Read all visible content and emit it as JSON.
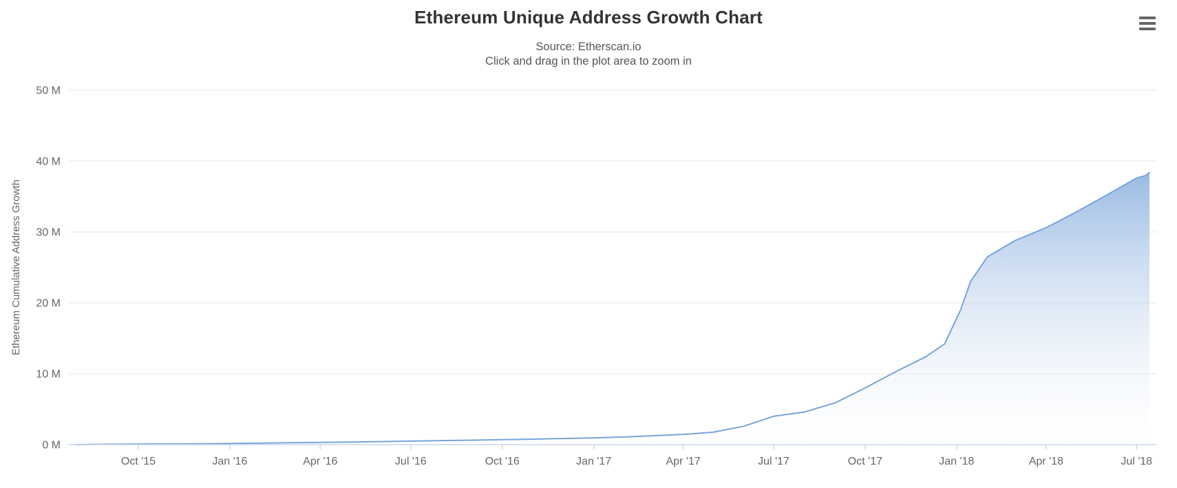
{
  "chart": {
    "title": "Ethereum Unique Address Growth Chart",
    "subtitle_source": "Source: Etherscan.io",
    "subtitle_hint": "Click and drag in the plot area to zoom in",
    "menu_icon": "hamburger-menu-icon",
    "colors": {
      "line": "#76a4da",
      "fill_top": "#5b90d1",
      "fill_bottom": "#ffffff",
      "grid": "#e6e6e6",
      "axis": "#ccd6eb",
      "title_text": "#333333",
      "subtitle_text": "#555555",
      "label_text": "#666666"
    }
  },
  "chart_data": {
    "type": "area",
    "title": "Ethereum Unique Address Growth Chart",
    "subtitle": [
      "Source: Etherscan.io",
      "Click and drag in the plot area to zoom in"
    ],
    "xlabel": "",
    "ylabel": "Ethereum Cumulative Address Growth",
    "y_unit": "millions of addresses",
    "ylim": [
      0,
      50
    ],
    "x_range": [
      "2015-07-30",
      "2018-07-14"
    ],
    "grid": "horizontal",
    "legend": "none",
    "y_ticks": [
      {
        "value": 0,
        "label": "0 M"
      },
      {
        "value": 10,
        "label": "10 M"
      },
      {
        "value": 20,
        "label": "20 M"
      },
      {
        "value": 30,
        "label": "30 M"
      },
      {
        "value": 40,
        "label": "40 M"
      },
      {
        "value": 50,
        "label": "50 M"
      }
    ],
    "x_ticks": [
      {
        "date": "2015-10-01",
        "label": "Oct '15"
      },
      {
        "date": "2016-01-01",
        "label": "Jan '16"
      },
      {
        "date": "2016-04-01",
        "label": "Apr '16"
      },
      {
        "date": "2016-07-01",
        "label": "Jul '16"
      },
      {
        "date": "2016-10-01",
        "label": "Oct '16"
      },
      {
        "date": "2017-01-01",
        "label": "Jan '17"
      },
      {
        "date": "2017-04-01",
        "label": "Apr '17"
      },
      {
        "date": "2017-07-01",
        "label": "Jul '17"
      },
      {
        "date": "2017-10-01",
        "label": "Oct '17"
      },
      {
        "date": "2018-01-01",
        "label": "Jan '18"
      },
      {
        "date": "2018-04-01",
        "label": "Apr '18"
      },
      {
        "date": "2018-07-01",
        "label": "Jul '18"
      }
    ],
    "series": [
      {
        "name": "Ethereum Cumulative Address Growth",
        "unit": "M",
        "points": [
          [
            "2015-07-30",
            0.0
          ],
          [
            "2015-08-15",
            0.03
          ],
          [
            "2015-09-01",
            0.06
          ],
          [
            "2015-10-01",
            0.09
          ],
          [
            "2015-11-01",
            0.11
          ],
          [
            "2015-12-01",
            0.13
          ],
          [
            "2016-01-01",
            0.16
          ],
          [
            "2016-02-01",
            0.2
          ],
          [
            "2016-03-01",
            0.26
          ],
          [
            "2016-04-01",
            0.31
          ],
          [
            "2016-05-01",
            0.37
          ],
          [
            "2016-06-01",
            0.43
          ],
          [
            "2016-07-01",
            0.5
          ],
          [
            "2016-08-01",
            0.57
          ],
          [
            "2016-09-01",
            0.63
          ],
          [
            "2016-10-01",
            0.7
          ],
          [
            "2016-11-01",
            0.78
          ],
          [
            "2016-12-01",
            0.86
          ],
          [
            "2017-01-01",
            0.95
          ],
          [
            "2017-02-01",
            1.08
          ],
          [
            "2017-03-01",
            1.25
          ],
          [
            "2017-04-01",
            1.45
          ],
          [
            "2017-05-01",
            1.75
          ],
          [
            "2017-06-01",
            2.6
          ],
          [
            "2017-07-01",
            4.0
          ],
          [
            "2017-08-01",
            4.6
          ],
          [
            "2017-09-01",
            5.9
          ],
          [
            "2017-10-01",
            8.0
          ],
          [
            "2017-11-01",
            10.3
          ],
          [
            "2017-12-01",
            12.4
          ],
          [
            "2017-12-20",
            14.2
          ],
          [
            "2018-01-05",
            19.0
          ],
          [
            "2018-01-15",
            23.0
          ],
          [
            "2018-02-01",
            26.5
          ],
          [
            "2018-03-01",
            28.8
          ],
          [
            "2018-04-01",
            30.6
          ],
          [
            "2018-05-01",
            32.8
          ],
          [
            "2018-06-01",
            35.2
          ],
          [
            "2018-07-01",
            37.6
          ],
          [
            "2018-07-10",
            37.95
          ],
          [
            "2018-07-14",
            38.4
          ]
        ]
      }
    ]
  }
}
